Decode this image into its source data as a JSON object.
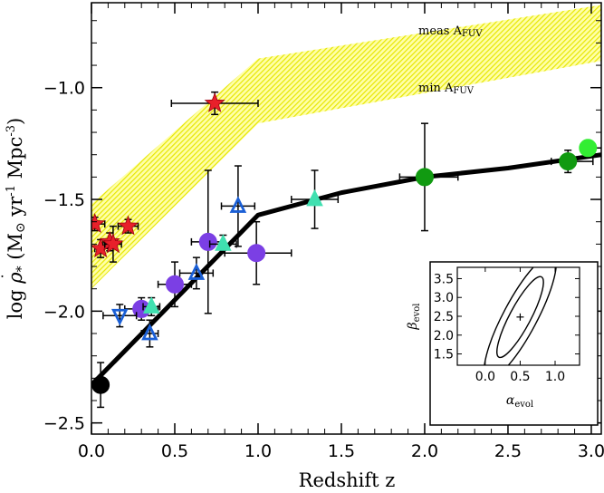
{
  "chart_data": {
    "type": "scatter",
    "xlabel": "Redshift z",
    "ylabel_parts": {
      "prefix": "log ",
      "rho": "ρ",
      "dot": "˙",
      "star": "*",
      "units_open": "  (M",
      "sun": "⊙",
      "units_mid": " yr",
      "exp1": "-1",
      "units_mpc": " Mpc",
      "exp3": "-3",
      "units_close": ")"
    },
    "xlim": [
      0.0,
      3.06
    ],
    "ylim": [
      -2.55,
      -0.62
    ],
    "x_ticks": [
      0.0,
      0.5,
      1.0,
      1.5,
      2.0,
      2.5,
      3.0
    ],
    "x_tick_labels": [
      "0.0",
      "0.5",
      "1.0",
      "1.5",
      "2.0",
      "2.5",
      "3.0"
    ],
    "y_ticks": [
      -2.5,
      -2.0,
      -1.5,
      -1.0
    ],
    "y_tick_labels": [
      "−2.5",
      "−2.0",
      "−1.5",
      "−1.0"
    ],
    "band": {
      "name": "A_FUV range",
      "color": "#e8e800",
      "upper": [
        [
          0.0,
          -1.52
        ],
        [
          1.0,
          -0.87
        ],
        [
          3.06,
          -0.63
        ]
      ],
      "lower": [
        [
          0.0,
          -1.9
        ],
        [
          1.0,
          -1.16
        ],
        [
          3.06,
          -0.88
        ]
      ]
    },
    "band_labels": {
      "meas": {
        "text": "meas A",
        "sub": "FUV",
        "x": 2.4,
        "y": -0.77
      },
      "min": {
        "text": "min A",
        "sub": "FUV",
        "x": 2.4,
        "y": -1.0
      }
    },
    "fit_line": {
      "color": "#000000",
      "points": [
        [
          0.0,
          -2.33
        ],
        [
          1.0,
          -1.57
        ],
        [
          1.5,
          -1.47
        ],
        [
          2.0,
          -1.4
        ],
        [
          2.5,
          -1.36
        ],
        [
          3.06,
          -1.3
        ]
      ]
    },
    "series": [
      {
        "name": "red stars",
        "marker": "star",
        "color": "#e8202a",
        "points": [
          {
            "x": 0.02,
            "y": -1.61,
            "xerr": [
              0.02,
              0.06
            ],
            "yerr": [
              0.03,
              0.03
            ]
          },
          {
            "x": 0.055,
            "y": -1.72,
            "xerr": [
              0.035,
              0.045
            ],
            "yerr": [
              0.04,
              0.04
            ]
          },
          {
            "x": 0.11,
            "y": -1.69,
            "xerr": [
              0.04,
              0.04
            ],
            "yerr": [
              0.04,
              0.04
            ]
          },
          {
            "x": 0.13,
            "y": -1.7,
            "xerr": [
              0.05,
              0.05
            ],
            "yerr": [
              0.08,
              0.08
            ]
          },
          {
            "x": 0.22,
            "y": -1.62,
            "xerr": [
              0.06,
              0.06
            ],
            "yerr": [
              0.03,
              0.03
            ]
          },
          {
            "x": 0.74,
            "y": -1.07,
            "xerr": [
              0.26,
              0.26
            ],
            "yerr": [
              0.05,
              0.05
            ]
          }
        ]
      },
      {
        "name": "black circle",
        "marker": "circle",
        "color": "#000000",
        "points": [
          {
            "x": 0.055,
            "y": -2.33,
            "xerr": [
              0.045,
              0.045
            ],
            "yerr": [
              0.1,
              0.1
            ]
          }
        ]
      },
      {
        "name": "purple circles",
        "marker": "circle",
        "color": "#7b3fe4",
        "points": [
          {
            "x": 0.3,
            "y": -1.99,
            "xerr": [
              0.1,
              0.1
            ],
            "yerr": [
              0.05,
              0.05
            ]
          },
          {
            "x": 0.5,
            "y": -1.88,
            "xerr": [
              0.1,
              0.1
            ],
            "yerr": [
              0.1,
              0.1
            ]
          },
          {
            "x": 0.7,
            "y": -1.69,
            "xerr": [
              0.1,
              0.1
            ],
            "yerr": [
              0.32,
              0.32
            ]
          },
          {
            "x": 0.99,
            "y": -1.74,
            "xerr": [
              0.19,
              0.21
            ],
            "yerr": [
              0.14,
              0.14
            ]
          }
        ]
      },
      {
        "name": "blue triangles up",
        "marker": "triangle-up",
        "color": "#1a5fd6",
        "points": [
          {
            "x": 0.35,
            "y": -2.1,
            "xerr": [
              0.05,
              0.05
            ],
            "yerr": [
              0.06,
              0.06
            ]
          },
          {
            "x": 0.63,
            "y": -1.83,
            "xerr": [
              0.1,
              0.1
            ],
            "yerr": [
              0.07,
              0.07
            ]
          },
          {
            "x": 0.88,
            "y": -1.53,
            "xerr": [
              0.1,
              0.1
            ],
            "yerr": [
              0.18,
              0.18
            ]
          }
        ]
      },
      {
        "name": "blue triangle down",
        "marker": "triangle-down",
        "color": "#1a5fd6",
        "points": [
          {
            "x": 0.17,
            "y": -2.02,
            "xerr": [
              0.1,
              0.1
            ],
            "yerr": [
              0.05,
              0.05
            ]
          }
        ]
      },
      {
        "name": "cyan triangles",
        "marker": "triangle-up",
        "color": "#40e0b0",
        "points": [
          {
            "x": 0.36,
            "y": -1.98,
            "xerr": [
              0.05,
              0.05
            ],
            "yerr": [
              0.04,
              0.04
            ]
          },
          {
            "x": 0.79,
            "y": -1.7,
            "xerr": [
              0.08,
              0.08
            ],
            "yerr": [
              0.04,
              0.04
            ]
          },
          {
            "x": 1.34,
            "y": -1.5,
            "xerr": [
              0.14,
              0.14
            ],
            "yerr": [
              0.13,
              0.13
            ]
          }
        ]
      },
      {
        "name": "dark green circles",
        "marker": "circle",
        "color": "#119a11",
        "points": [
          {
            "x": 2.0,
            "y": -1.4,
            "xerr": [
              0.15,
              0.2
            ],
            "yerr": [
              0.24,
              0.24
            ]
          },
          {
            "x": 2.86,
            "y": -1.33,
            "xerr": [
              0.1,
              0.15
            ],
            "yerr": [
              0.05,
              0.05
            ]
          }
        ]
      },
      {
        "name": "light green circle",
        "marker": "circle",
        "color": "#33ee33",
        "points": [
          {
            "x": 2.98,
            "y": -1.27,
            "xerr": [
              0.02,
              0.1
            ],
            "yerr": [
              0.03,
              0.03
            ]
          }
        ]
      }
    ],
    "inset": {
      "xlabel": "α",
      "xlabel_sub": "evol",
      "ylabel": "β",
      "ylabel_sub": "evol",
      "xlim": [
        -0.4,
        1.35
      ],
      "ylim": [
        1.2,
        3.8
      ],
      "x_ticks": [
        0.0,
        0.5,
        1.0
      ],
      "x_tick_labels": [
        "0.0",
        "0.5",
        "1.0"
      ],
      "y_ticks": [
        1.5,
        2.0,
        2.5,
        3.0,
        3.5
      ],
      "y_tick_labels": [
        "1.5",
        "2.0",
        "2.5",
        "3.0",
        "3.5"
      ],
      "best_fit": {
        "x": 0.5,
        "y": 2.48
      },
      "contours": [
        {
          "cx": 0.5,
          "cy": 2.48,
          "a": 0.65,
          "b": 0.2,
          "angle_deg": -62
        },
        {
          "cx": 0.5,
          "cy": 2.48,
          "a": 1.0,
          "b": 0.32,
          "angle_deg": -62
        }
      ]
    }
  }
}
